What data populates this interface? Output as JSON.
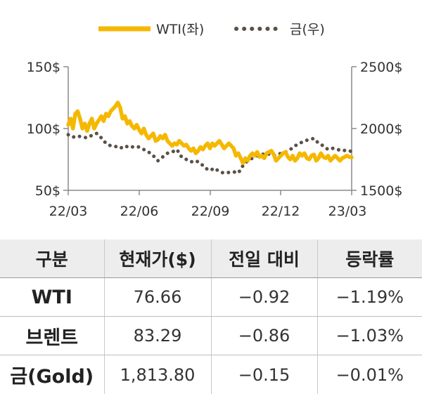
{
  "chart_data": {
    "type": "line",
    "legend": {
      "placement": "top-center"
    },
    "x_ticks": [
      "22/03",
      "22/06",
      "22/09",
      "22/12",
      "23/03"
    ],
    "y_left": {
      "ticks": [
        "150$",
        "100$",
        "50$"
      ],
      "range": [
        50,
        150
      ]
    },
    "y_right": {
      "ticks": [
        "2500$",
        "2000$",
        "1500$"
      ],
      "range": [
        1500,
        2500
      ]
    },
    "colors": {
      "wti": "#f5b800",
      "gold": "#5a5045",
      "axis": "#8a8a8a"
    },
    "series": [
      {
        "name": "WTI(좌)",
        "axis": "left",
        "style": "solid",
        "x": [
          0.0,
          0.1,
          0.2,
          0.3,
          0.4,
          0.5,
          0.6,
          0.7,
          0.8,
          0.9,
          1.0,
          1.1,
          1.2,
          1.3,
          1.4,
          1.5,
          1.6,
          1.7,
          1.8,
          1.9,
          2.0,
          2.1,
          2.2,
          2.3,
          2.4,
          2.5,
          2.6,
          2.7,
          2.8,
          2.9,
          3.0,
          3.1,
          3.2,
          3.3,
          3.4,
          3.5,
          3.6,
          3.7,
          3.8,
          3.9,
          4.0,
          4.1,
          4.2,
          4.3,
          4.4,
          4.5,
          4.6,
          4.7,
          4.8,
          4.9,
          5.0,
          5.1,
          5.2,
          5.3,
          5.4,
          5.5,
          5.6,
          5.7,
          5.8,
          5.9,
          6.0,
          6.1,
          6.2,
          6.3,
          6.4,
          6.5,
          6.6,
          6.7,
          6.8,
          6.9,
          7.0,
          7.1,
          7.2,
          7.3,
          7.4,
          7.5,
          7.6,
          7.7,
          7.8,
          7.9,
          8.0,
          8.1,
          8.2,
          8.3,
          8.4,
          8.5,
          8.6,
          8.7,
          8.8,
          8.9,
          9.0,
          9.1,
          9.2,
          9.3,
          9.4,
          9.5,
          9.6,
          9.7,
          9.8,
          9.9,
          10.0,
          10.1,
          10.2,
          10.3,
          10.4,
          10.5,
          10.6,
          10.7,
          10.8,
          10.9,
          11.0,
          11.1,
          11.2,
          11.3,
          11.4,
          11.5,
          11.6,
          11.7,
          11.8,
          11.9,
          12.0
        ],
        "values": [
          103,
          108,
          100,
          112,
          114,
          108,
          100,
          104,
          98,
          104,
          108,
          100,
          104,
          107,
          110,
          106,
          112,
          110,
          114,
          116,
          118,
          121,
          117,
          108,
          110,
          104,
          106,
          102,
          100,
          103,
          99,
          96,
          100,
          95,
          92,
          94,
          96,
          90,
          91,
          94,
          92,
          95,
          90,
          88,
          86,
          88,
          87,
          90,
          88,
          86,
          87,
          84,
          82,
          84,
          80,
          82,
          85,
          83,
          86,
          88,
          84,
          88,
          86,
          88,
          90,
          87,
          84,
          86,
          88,
          86,
          84,
          78,
          80,
          76,
          72,
          76,
          74,
          78,
          80,
          78,
          81,
          77,
          78,
          76,
          80,
          81,
          82,
          79,
          74,
          76,
          78,
          80,
          81,
          77,
          75,
          78,
          74,
          76,
          80,
          78,
          80,
          76,
          75,
          78,
          79,
          74,
          76,
          80,
          77,
          76,
          78,
          74,
          76,
          78,
          76,
          74,
          76,
          77,
          78,
          77,
          76.7
        ]
      },
      {
        "name": "금(우)",
        "axis": "right",
        "style": "dotted",
        "x": [
          0.0,
          0.2,
          0.4,
          0.6,
          0.8,
          1.0,
          1.2,
          1.4,
          1.6,
          1.8,
          2.0,
          2.2,
          2.4,
          2.6,
          2.8,
          3.0,
          3.2,
          3.4,
          3.6,
          3.8,
          4.0,
          4.2,
          4.4,
          4.6,
          4.8,
          5.0,
          5.2,
          5.4,
          5.6,
          5.8,
          6.0,
          6.2,
          6.4,
          6.6,
          6.8,
          7.0,
          7.2,
          7.4,
          7.6,
          7.8,
          8.0,
          8.2,
          8.4,
          8.6,
          8.8,
          9.0,
          9.2,
          9.4,
          9.6,
          9.8,
          10.0,
          10.2,
          10.4,
          10.6,
          10.8,
          11.0,
          11.2,
          11.4,
          11.6,
          11.8,
          12.0
        ],
        "values": [
          1950,
          1930,
          1940,
          1930,
          1925,
          1945,
          1960,
          1925,
          1880,
          1860,
          1855,
          1840,
          1860,
          1845,
          1855,
          1850,
          1830,
          1810,
          1780,
          1740,
          1770,
          1800,
          1810,
          1830,
          1770,
          1750,
          1730,
          1740,
          1720,
          1680,
          1660,
          1680,
          1650,
          1640,
          1645,
          1650,
          1640,
          1700,
          1740,
          1760,
          1780,
          1790,
          1800,
          1785,
          1780,
          1800,
          1810,
          1830,
          1860,
          1880,
          1900,
          1910,
          1920,
          1880,
          1860,
          1830,
          1840,
          1830,
          1820,
          1825,
          1813.8
        ]
      }
    ]
  },
  "table": {
    "headers": [
      "구분",
      "현재가($)",
      "전일 대비",
      "등락률"
    ],
    "rows": [
      {
        "name": "WTI",
        "price": "76.66",
        "change": "−0.92",
        "rate": "−1.19%"
      },
      {
        "name": "브렌트",
        "price": "83.29",
        "change": "−0.86",
        "rate": "−1.03%"
      },
      {
        "name": "금(Gold)",
        "price": "1,813.80",
        "change": "−0.15",
        "rate": "−0.01%"
      }
    ]
  }
}
